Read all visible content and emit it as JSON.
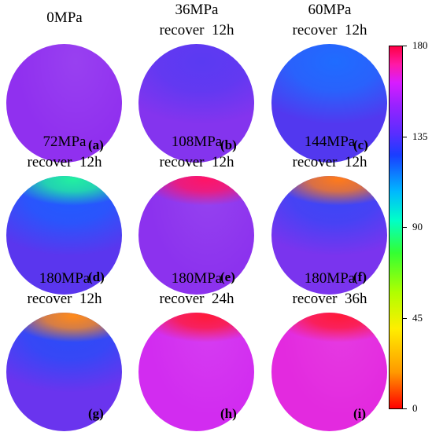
{
  "panels": [
    {
      "title": "0MPa",
      "subtitle": "",
      "letter": "(a)",
      "base": "#9030ef",
      "hot": "",
      "cool": ""
    },
    {
      "title": "36MPa",
      "subtitle": "recover  12h",
      "letter": "(b)",
      "base": "#8434ee",
      "hot": "",
      "cool": "#5a3af2"
    },
    {
      "title": "60MPa",
      "subtitle": "recover  12h",
      "letter": "(c)",
      "base": "#5238ef",
      "hot": "",
      "cool": "#1f6cff"
    },
    {
      "title": "72MPa",
      "subtitle": "recover  12h",
      "letter": "(d)",
      "base": "#5a36ee",
      "hot": "#22f0a0",
      "cool": "#1f5cff"
    },
    {
      "title": "108MPa",
      "subtitle": "recover  12h",
      "letter": "(e)",
      "base": "#8c32ee",
      "hot": "#ff1466",
      "cool": ""
    },
    {
      "title": "144MPa",
      "subtitle": "recover  12h",
      "letter": "(f)",
      "base": "#7a34ee",
      "hot": "#ff7a1a",
      "cool": "#3a46f6"
    },
    {
      "title": "180MPa",
      "subtitle": "recover  12h",
      "letter": "(g)",
      "base": "#6a34ee",
      "hot": "#ff8a1a",
      "cool": "#2a4cf8"
    },
    {
      "title": "180MPa",
      "subtitle": "recover  24h",
      "letter": "(h)",
      "base": "#d22cf0",
      "hot": "#ff1a3a",
      "cool": ""
    },
    {
      "title": "180MPa",
      "subtitle": "recover  36h",
      "letter": "(i)",
      "base": "#e32adf",
      "hot": "#ff1a3a",
      "cool": ""
    }
  ],
  "colorbar": {
    "ticks": [
      "180",
      "135",
      "90",
      "45",
      "0"
    ],
    "range": [
      0,
      180
    ],
    "colormap": "hsv (red-yellow-green-cyan-blue-magenta-red)"
  }
}
